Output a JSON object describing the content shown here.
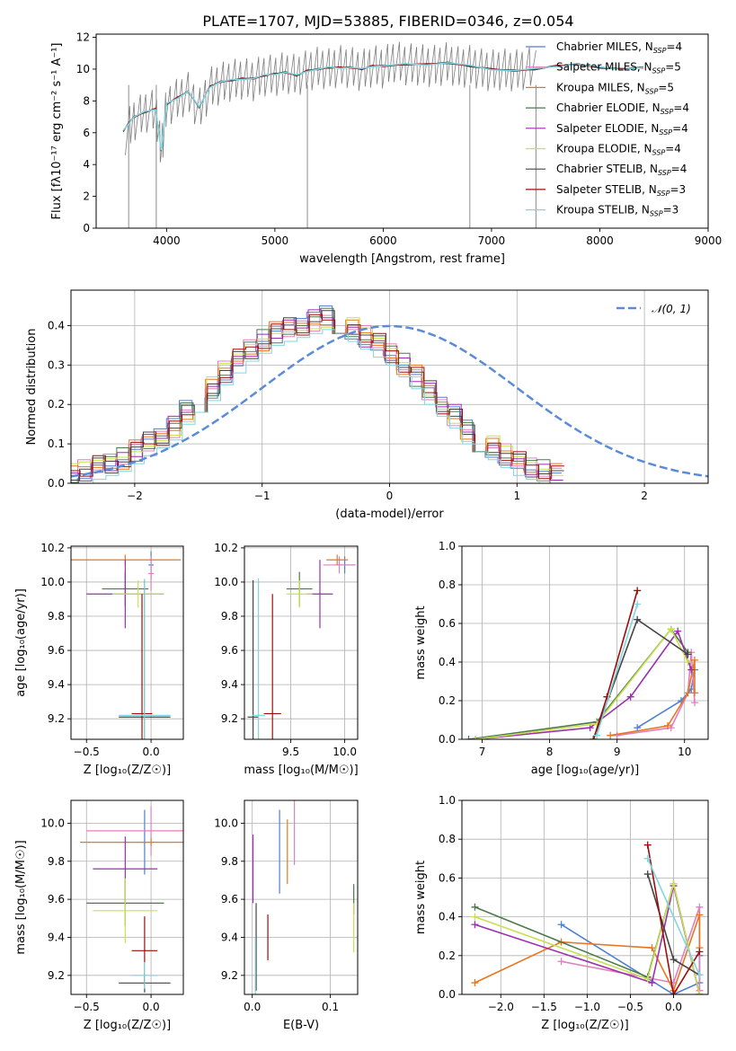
{
  "figure": {
    "title": "PLATE=1707, MJD=53885, FIBERID=0346, z=0.054"
  },
  "colors": {
    "Chabrier MILES": "#4f7fd1",
    "Salpeter MILES": "#e07fc0",
    "Kroupa MILES": "#e8761f",
    "Chabrier ELODIE": "#4a7a4a",
    "Salpeter ELODIE": "#9b2fae",
    "Kroupa ELODIE": "#c8e050",
    "Chabrier STELIB": "#444444",
    "Salpeter STELIB": "#9e0c0c",
    "Kroupa STELIB": "#7fd6e0",
    "data": "#7f7f7f",
    "normal": "#5b8bd8"
  },
  "chart_data": [
    {
      "id": "spectrum",
      "type": "line",
      "title": "PLATE=1707, MJD=53885, FIBERID=0346, z=0.054",
      "xlabel": "wavelength [Angstrom, rest frame]",
      "ylabel": "Flux [fλ10⁻¹⁷ erg cm⁻² s⁻¹ A⁻¹]",
      "xlim": [
        3350,
        9000
      ],
      "ylim": [
        0,
        12.2
      ],
      "xticks": [
        4000,
        5000,
        6000,
        7000,
        8000,
        9000
      ],
      "yticks": [
        0,
        2,
        4,
        6,
        8,
        10,
        12
      ],
      "grid": false,
      "legend_position": "right",
      "data_x": [
        3620,
        3700,
        3800,
        3900,
        3950,
        4000,
        4100,
        4200,
        4300,
        4400,
        4500,
        4600,
        4700,
        4800,
        4900,
        5000,
        5100,
        5200,
        5300,
        5400,
        5500,
        5600,
        5700,
        5800,
        5900,
        6000,
        6100,
        6200,
        6300,
        6400,
        6500,
        6600,
        6700,
        6800,
        6900,
        7000,
        7100,
        7200,
        7300,
        7420
      ],
      "data_y": [
        5.9,
        6.8,
        7.3,
        7.4,
        4.8,
        7.7,
        8.1,
        8.5,
        7.4,
        8.8,
        9.1,
        9.3,
        9.4,
        9.3,
        9.6,
        9.6,
        9.8,
        9.6,
        9.9,
        10.1,
        10.0,
        10.2,
        10.1,
        9.9,
        10.2,
        10.1,
        10.5,
        10.3,
        10.3,
        10.2,
        10.2,
        10.4,
        10.1,
        10.2,
        10.0,
        9.9,
        10.0,
        9.9,
        10.0,
        10.1
      ],
      "model_x": [
        3600,
        3650,
        3700,
        3800,
        3900,
        3950,
        4000,
        4100,
        4200,
        4300,
        4400,
        4500,
        4600,
        4700,
        4800,
        4900,
        5000,
        5100,
        5200,
        5300,
        5400,
        5500,
        5600,
        5700,
        5800,
        5900,
        6000,
        6200,
        6400,
        6600,
        6800,
        7000,
        7200,
        7400,
        7600,
        7800,
        8000,
        8200,
        8400
      ],
      "model_y": [
        6.1,
        6.6,
        7.0,
        7.3,
        7.5,
        4.9,
        7.8,
        8.2,
        8.6,
        7.6,
        8.9,
        9.2,
        9.3,
        9.4,
        9.4,
        9.6,
        9.7,
        9.8,
        9.6,
        9.9,
        10.0,
        10.1,
        10.1,
        10.1,
        10.0,
        10.2,
        10.2,
        10.3,
        10.3,
        10.4,
        10.2,
        10.0,
        9.9,
        10.0,
        10.2,
        10.3,
        10.1,
        10.0,
        10.1
      ],
      "series": [
        {
          "name": "Chabrier MILES, N$_{SSP}$=4",
          "label": "Chabrier MILES, N",
          "sub": "SSP",
          "suffix": "=4"
        },
        {
          "name": "Salpeter MILES, N$_{SSP}$=5",
          "label": "Salpeter MILES, N",
          "sub": "SSP",
          "suffix": "=5"
        },
        {
          "name": "Kroupa MILES, N$_{SSP}$=5",
          "label": "Kroupa MILES, N",
          "sub": "SSP",
          "suffix": "=5"
        },
        {
          "name": "Chabrier ELODIE, N$_{SSP}$=4",
          "label": "Chabrier ELODIE, N",
          "sub": "SSP",
          "suffix": "=4"
        },
        {
          "name": "Salpeter ELODIE, N$_{SSP}$=4",
          "label": "Salpeter ELODIE, N",
          "sub": "SSP",
          "suffix": "=4"
        },
        {
          "name": "Kroupa ELODIE, N$_{SSP}$=4",
          "label": "Kroupa ELODIE, N",
          "sub": "SSP",
          "suffix": "=4"
        },
        {
          "name": "Chabrier STELIB, N$_{SSP}$=4",
          "label": "Chabrier STELIB, N",
          "sub": "SSP",
          "suffix": "=4"
        },
        {
          "name": "Salpeter STELIB, N$_{SSP}$=3",
          "label": "Salpeter STELIB, N",
          "sub": "SSP",
          "suffix": "=3"
        },
        {
          "name": "Kroupa STELIB, N$_{SSP}$=3",
          "label": "Kroupa STELIB, N",
          "sub": "SSP",
          "suffix": "=3"
        }
      ]
    },
    {
      "id": "residuals",
      "type": "line",
      "xlabel": "(data-model)/error",
      "ylabel": "Normed distribution",
      "xlim": [
        -2.5,
        2.5
      ],
      "ylim": [
        0,
        0.49
      ],
      "xticks": [
        -2,
        -1,
        0,
        1,
        2
      ],
      "yticks": [
        0.0,
        0.1,
        0.2,
        0.3,
        0.4
      ],
      "grid": true,
      "legend_position": "top-right",
      "legend": "𝒩(0, 1)",
      "reference": "normal pdf, mean 0, sd 1",
      "bin_width": 0.1,
      "envelope": [
        0.02,
        0.03,
        0.04,
        0.05,
        0.06,
        0.08,
        0.1,
        0.12,
        0.14,
        0.18,
        0.21,
        0.24,
        0.28,
        0.31,
        0.34,
        0.36,
        0.38,
        0.39,
        0.4,
        0.41,
        0.42,
        0.41,
        0.39,
        0.37,
        0.35,
        0.33,
        0.3,
        0.27,
        0.23,
        0.2,
        0.17,
        0.13,
        0.11,
        0.09,
        0.07,
        0.05,
        0.04,
        0.03,
        0.02
      ]
    },
    {
      "id": "age-vs-Z",
      "type": "scatter",
      "xlabel": "Z [log₁₀(Z/Z☉)]",
      "ylabel": "age  [log₁₀(age/yr)]",
      "xlim": [
        -0.62,
        0.25
      ],
      "ylim": [
        9.08,
        10.21
      ],
      "xticks": [
        -0.5,
        0.0
      ],
      "xticklabels": [
        "−0.5",
        "0.0"
      ],
      "yticks": [
        9.2,
        9.4,
        9.6,
        9.8,
        10.0,
        10.2
      ],
      "grid": true,
      "points": [
        {
          "series": "Chabrier MILES",
          "x": 0.0,
          "y": 10.1,
          "xerr": 0.02,
          "yerr": 0.08
        },
        {
          "series": "Salpeter MILES",
          "x": 0.0,
          "y": 10.05,
          "xerr": 0.02,
          "yerr": 0.1
        },
        {
          "series": "Kroupa MILES",
          "x": -0.2,
          "y": 10.13,
          "xerr": 0.43,
          "yerr": 0.03
        },
        {
          "series": "Chabrier ELODIE",
          "x": -0.2,
          "y": 9.96,
          "xerr": 0.18,
          "yerr": 0.1
        },
        {
          "series": "Salpeter ELODIE",
          "x": -0.2,
          "y": 9.93,
          "xerr": 0.3,
          "yerr": 0.2
        },
        {
          "series": "Kroupa ELODIE",
          "x": -0.1,
          "y": 9.93,
          "xerr": 0.2,
          "yerr": 0.08
        },
        {
          "series": "Chabrier STELIB",
          "x": -0.05,
          "y": 9.21,
          "xerr": 0.2,
          "yerr": 0.8
        },
        {
          "series": "Salpeter STELIB",
          "x": -0.07,
          "y": 9.23,
          "xerr": 0.08,
          "yerr": 0.7
        },
        {
          "series": "Kroupa STELIB",
          "x": -0.05,
          "y": 9.22,
          "xerr": 0.2,
          "yerr": 0.8
        }
      ]
    },
    {
      "id": "age-vs-mass",
      "type": "scatter",
      "xlabel": "mass [log₁₀(M/M☉)]",
      "ylabel": "",
      "xlim": [
        9.07,
        10.12
      ],
      "ylim": [
        9.08,
        10.21
      ],
      "xticks": [
        9.5,
        10.0
      ],
      "yticks": [
        9.2,
        9.4,
        9.6,
        9.8,
        10.0,
        10.2
      ],
      "grid": true,
      "points": [
        {
          "series": "Chabrier MILES",
          "x": 10.0,
          "y": 10.1,
          "xerr": 0.1,
          "yerr": 0.05
        },
        {
          "series": "Salpeter MILES",
          "x": 9.95,
          "y": 10.1,
          "xerr": 0.15,
          "yerr": 0.05
        },
        {
          "series": "Kroupa MILES",
          "x": 9.93,
          "y": 10.13,
          "xerr": 0.1,
          "yerr": 0.03
        },
        {
          "series": "Chabrier ELODIE",
          "x": 9.58,
          "y": 9.96,
          "xerr": 0.12,
          "yerr": 0.1
        },
        {
          "series": "Salpeter ELODIE",
          "x": 9.77,
          "y": 9.93,
          "xerr": 0.12,
          "yerr": 0.2
        },
        {
          "series": "Kroupa ELODIE",
          "x": 9.58,
          "y": 9.93,
          "xerr": 0.12,
          "yerr": 0.08
        },
        {
          "series": "Chabrier STELIB",
          "x": 9.15,
          "y": 9.21,
          "xerr": 0.05,
          "yerr": 0.8
        },
        {
          "series": "Salpeter STELIB",
          "x": 9.33,
          "y": 9.23,
          "xerr": 0.08,
          "yerr": 0.7
        },
        {
          "series": "Kroupa STELIB",
          "x": 9.2,
          "y": 9.22,
          "xerr": 0.06,
          "yerr": 0.8
        }
      ]
    },
    {
      "id": "weight-vs-age",
      "type": "line",
      "xlabel": "age  [log₁₀(age/yr)]",
      "ylabel": "mass weight",
      "xlim": [
        6.7,
        10.35
      ],
      "ylim": [
        0,
        1.0
      ],
      "xticks": [
        7,
        8,
        9,
        10
      ],
      "yticks": [
        0.0,
        0.2,
        0.4,
        0.6,
        0.8,
        1.0
      ],
      "grid": true,
      "series": [
        {
          "name": "Chabrier MILES",
          "x": [
            9.3,
            9.95,
            10.1,
            10.15
          ],
          "y": [
            0.06,
            0.2,
            0.26,
            0.36
          ]
        },
        {
          "name": "Salpeter MILES",
          "x": [
            9.0,
            9.8,
            10.05,
            10.1,
            10.15
          ],
          "y": [
            0.02,
            0.06,
            0.24,
            0.45,
            0.19
          ]
        },
        {
          "name": "Kroupa MILES",
          "x": [
            8.9,
            9.75,
            10.05,
            10.15,
            10.15
          ],
          "y": [
            0.02,
            0.07,
            0.24,
            0.41,
            0.24
          ]
        },
        {
          "name": "Chabrier ELODIE",
          "x": [
            6.8,
            8.7,
            9.8,
            10.05
          ],
          "y": [
            0.0,
            0.09,
            0.57,
            0.45
          ]
        },
        {
          "name": "Salpeter ELODIE",
          "x": [
            6.9,
            8.6,
            9.2,
            9.9,
            10.1
          ],
          "y": [
            0.0,
            0.06,
            0.22,
            0.56,
            0.36
          ]
        },
        {
          "name": "Kroupa ELODIE",
          "x": [
            6.9,
            8.7,
            9.8,
            10.05
          ],
          "y": [
            0.0,
            0.08,
            0.57,
            0.4
          ]
        },
        {
          "name": "Chabrier STELIB",
          "x": [
            8.65,
            9.3,
            10.05
          ],
          "y": [
            0.0,
            0.62,
            0.44
          ]
        },
        {
          "name": "Salpeter STELIB",
          "x": [
            8.65,
            8.85,
            9.3
          ],
          "y": [
            0.0,
            0.22,
            0.77
          ]
        },
        {
          "name": "Kroupa STELIB",
          "x": [
            8.7,
            9.3
          ],
          "y": [
            0.02,
            0.7
          ]
        }
      ]
    },
    {
      "id": "mass-vs-Z",
      "type": "scatter",
      "xlabel": "Z [log₁₀(Z/Z☉)]",
      "ylabel": "mass [log₁₀(M/M☉)]",
      "xlim": [
        -0.62,
        0.25
      ],
      "ylim": [
        9.1,
        10.12
      ],
      "xticks": [
        -0.5,
        0.0
      ],
      "xticklabels": [
        "−0.5",
        "0.0"
      ],
      "yticks": [
        9.2,
        9.4,
        9.6,
        9.8,
        10.0
      ],
      "grid": true,
      "points": [
        {
          "series": "Chabrier MILES",
          "x": -0.05,
          "y": 9.9,
          "xerr": 0.02,
          "yerr": 0.17
        },
        {
          "series": "Salpeter MILES",
          "x": 0.0,
          "y": 9.96,
          "xerr": 0.5,
          "yerr": 0.13
        },
        {
          "series": "Kroupa MILES",
          "x": 0.0,
          "y": 9.9,
          "xerr": 0.55,
          "yerr": 0.02
        },
        {
          "series": "Chabrier ELODIE",
          "x": -0.2,
          "y": 9.58,
          "xerr": 0.3,
          "yerr": 0.12
        },
        {
          "series": "Salpeter ELODIE",
          "x": -0.2,
          "y": 9.76,
          "xerr": 0.25,
          "yerr": 0.17
        },
        {
          "series": "Kroupa ELODIE",
          "x": -0.2,
          "y": 9.54,
          "xerr": 0.25,
          "yerr": 0.17
        },
        {
          "series": "Chabrier STELIB",
          "x": -0.05,
          "y": 9.16,
          "xerr": 0.2,
          "yerr": 0.05
        },
        {
          "series": "Salpeter STELIB",
          "x": -0.05,
          "y": 9.33,
          "xerr": 0.1,
          "yerr": 0.18
        },
        {
          "series": "Kroupa STELIB",
          "x": -0.05,
          "y": 9.2,
          "xerr": 0.1,
          "yerr": 0.07
        }
      ]
    },
    {
      "id": "mass-vs-EBV",
      "type": "scatter",
      "xlabel": "E(B-V)",
      "ylabel": "",
      "xlim": [
        -0.01,
        0.135
      ],
      "ylim": [
        9.1,
        10.12
      ],
      "xticks": [
        0.0,
        0.1
      ],
      "yticks": [
        9.2,
        9.4,
        9.6,
        9.8,
        10.0
      ],
      "grid": true,
      "points": [
        {
          "series": "Chabrier MILES",
          "x": 0.035,
          "y": 9.85,
          "yerr": 0.22
        },
        {
          "series": "Salpeter MILES",
          "x": 0.054,
          "y": 9.95,
          "yerr": 0.17
        },
        {
          "series": "Kroupa MILES",
          "x": 0.045,
          "y": 9.85,
          "yerr": 0.17
        },
        {
          "series": "Chabrier ELODIE",
          "x": 0.13,
          "y": 9.6,
          "yerr": 0.08
        },
        {
          "series": "Salpeter ELODIE",
          "x": 0.001,
          "y": 9.76,
          "yerr": 0.18
        },
        {
          "series": "Kroupa ELODIE",
          "x": 0.13,
          "y": 9.45,
          "yerr": 0.13
        },
        {
          "series": "Chabrier STELIB",
          "x": 0.005,
          "y": 9.35,
          "yerr": 0.23
        },
        {
          "series": "Salpeter STELIB",
          "x": 0.02,
          "y": 9.4,
          "yerr": 0.12
        },
        {
          "series": "Kroupa STELIB",
          "x": 0.004,
          "y": 9.25,
          "yerr": 0.15
        }
      ]
    },
    {
      "id": "weight-vs-Z",
      "type": "line",
      "xlabel": "Z [log₁₀(Z/Z☉)]",
      "ylabel": "mass weight",
      "xlim": [
        -2.45,
        0.4
      ],
      "ylim": [
        0,
        1.0
      ],
      "xticks": [
        -2.0,
        -1.5,
        -1.0,
        -0.5,
        0.0
      ],
      "xticklabels": [
        "−2.0",
        "−1.5",
        "−1.0",
        "−0.5",
        "0.0"
      ],
      "yticks": [
        0.0,
        0.2,
        0.4,
        0.6,
        0.8,
        1.0
      ],
      "grid": true,
      "series": [
        {
          "name": "Chabrier MILES",
          "x": [
            -1.3,
            0.0,
            0.3,
            0.3
          ],
          "y": [
            0.36,
            0.0,
            0.06,
            0.2
          ]
        },
        {
          "name": "Salpeter MILES",
          "x": [
            -1.3,
            0.0,
            0.3,
            0.3
          ],
          "y": [
            0.17,
            0.06,
            0.45,
            0.02
          ]
        },
        {
          "name": "Kroupa MILES",
          "x": [
            -2.3,
            -1.3,
            -0.25,
            0.0,
            0.3,
            0.3
          ],
          "y": [
            0.06,
            0.27,
            0.24,
            0.02,
            0.41,
            0.24
          ]
        },
        {
          "name": "Chabrier ELODIE",
          "x": [
            -2.3,
            -0.3,
            0.0,
            0.3
          ],
          "y": [
            0.45,
            0.09,
            0.57,
            0.0
          ]
        },
        {
          "name": "Salpeter ELODIE",
          "x": [
            -2.3,
            -0.25,
            0.0,
            0.3
          ],
          "y": [
            0.36,
            0.06,
            0.56,
            0.0
          ]
        },
        {
          "name": "Kroupa ELODIE",
          "x": [
            -2.3,
            -0.3,
            0.0,
            0.3
          ],
          "y": [
            0.4,
            0.08,
            0.57,
            0.0
          ]
        },
        {
          "name": "Chabrier STELIB",
          "x": [
            -0.3,
            0.0,
            0.3
          ],
          "y": [
            0.62,
            0.18,
            0.1
          ]
        },
        {
          "name": "Salpeter STELIB",
          "x": [
            -0.3,
            0.0,
            0.3
          ],
          "y": [
            0.77,
            0.0,
            0.22
          ]
        },
        {
          "name": "Kroupa STELIB",
          "x": [
            -0.3,
            0.3
          ],
          "y": [
            0.7,
            0.1
          ]
        }
      ]
    }
  ]
}
